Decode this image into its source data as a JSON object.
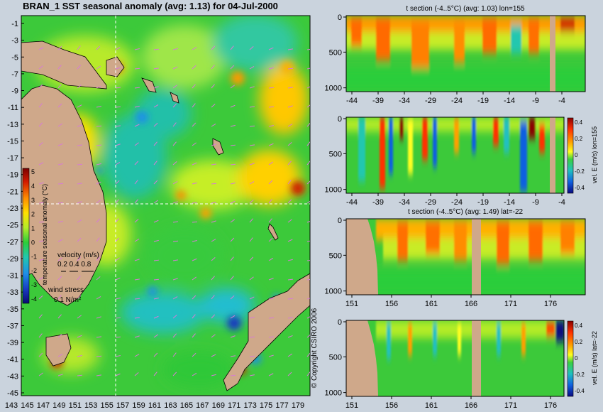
{
  "colors": {
    "background": "#cad3dd",
    "land": "#cfa88a",
    "grid_line": "#ffffff",
    "vector": "#d67bd6"
  },
  "map": {
    "title": "BRAN_1  SST seasonal anomaly (avg: 1.13) for 04-Jul-2000",
    "y_ticks": [
      "-1",
      "-3",
      "-5",
      "-7",
      "-9",
      "-11",
      "-13",
      "-15",
      "-17",
      "-19",
      "-21",
      "-23",
      "-25",
      "-27",
      "-29",
      "-31",
      "-33",
      "-35",
      "-37",
      "-39",
      "-41",
      "-43",
      "-45"
    ],
    "x_ticks": [
      "143",
      "145",
      "147",
      "149",
      "151",
      "153",
      "155",
      "157",
      "159",
      "161",
      "163",
      "165",
      "167",
      "169",
      "171",
      "173",
      "175",
      "177",
      "179"
    ],
    "colorbar": {
      "label": "temperature seasonal anomaly (°C)",
      "ticks": [
        "5",
        "4",
        "3",
        "2",
        "1",
        "0",
        "-1",
        "-2",
        "-3",
        "-4"
      ]
    },
    "velocity_legend": {
      "title": "velocity (m/s)",
      "values": "0.2 0.4 0.8"
    },
    "wind_legend": {
      "title": "wind stress",
      "value": "0.1 N/m²"
    },
    "crosshair": {
      "lon": 155,
      "lat": -22
    }
  },
  "copyright": "© Copyright CSIRO 2006",
  "panels": [
    {
      "title": "t section (-4..5°C) (avg: 1.03) lon=155",
      "x_ticks": [
        "-44",
        "-39",
        "-34",
        "-29",
        "-24",
        "-19",
        "-14",
        "-9",
        "-4"
      ],
      "y_ticks": [
        "0",
        "500",
        "1000"
      ],
      "colorbar": null
    },
    {
      "title": "",
      "x_ticks": [
        "-44",
        "-39",
        "-34",
        "-29",
        "-24",
        "-19",
        "-14",
        "-9",
        "-4"
      ],
      "y_ticks": [
        "0",
        "500",
        "1000"
      ],
      "colorbar": {
        "label": "vel. E (m/s) lon=155",
        "ticks": [
          "0.4",
          "0.2",
          "0",
          "-0.2",
          "-0.4"
        ]
      }
    },
    {
      "title": "t section (-4..5°C) (avg: 1.49) lat=-22",
      "x_ticks": [
        "151",
        "156",
        "161",
        "166",
        "171",
        "176"
      ],
      "y_ticks": [
        "0",
        "500",
        "1000"
      ],
      "colorbar": null
    },
    {
      "title": "",
      "x_ticks": [
        "151",
        "156",
        "161",
        "166",
        "171",
        "176"
      ],
      "y_ticks": [
        "0",
        "500",
        "1000"
      ],
      "colorbar": {
        "label": "vel. E (m/s) lat=-22",
        "ticks": [
          "0.4",
          "0.2",
          "0",
          "-0.2",
          "-0.4"
        ]
      }
    }
  ],
  "chart_data": [
    {
      "type": "heatmap",
      "title": "BRAN_1  SST seasonal anomaly (avg: 1.13) for 04-Jul-2000",
      "xlim": [
        142,
        180
      ],
      "ylim": [
        -45,
        0
      ],
      "grid": false,
      "colorbar_range": [
        -4,
        5
      ],
      "colorbar_label": "temperature seasonal anomaly (°C)",
      "avg": 1.13
    },
    {
      "type": "heatmap",
      "title": "t section (-4..5°C) (avg: 1.03) lon=155",
      "xlim": [
        -45,
        0
      ],
      "ylim": [
        1050,
        0
      ],
      "avg": 1.03
    },
    {
      "type": "heatmap",
      "xlim": [
        -45,
        0
      ],
      "ylim": [
        1050,
        0
      ],
      "colorbar_range": [
        -0.4,
        0.4
      ],
      "colorbar_label": "vel. E (m/s) lon=155"
    },
    {
      "type": "heatmap",
      "title": "t section (-4..5°C) (avg: 1.49) lat=-22",
      "xlim": [
        150,
        180
      ],
      "ylim": [
        1050,
        0
      ],
      "avg": 1.49
    },
    {
      "type": "heatmap",
      "xlim": [
        150,
        180
      ],
      "ylim": [
        1050,
        0
      ],
      "colorbar_range": [
        -0.4,
        0.4
      ],
      "colorbar_label": "vel. E (m/s) lat=-22"
    }
  ]
}
